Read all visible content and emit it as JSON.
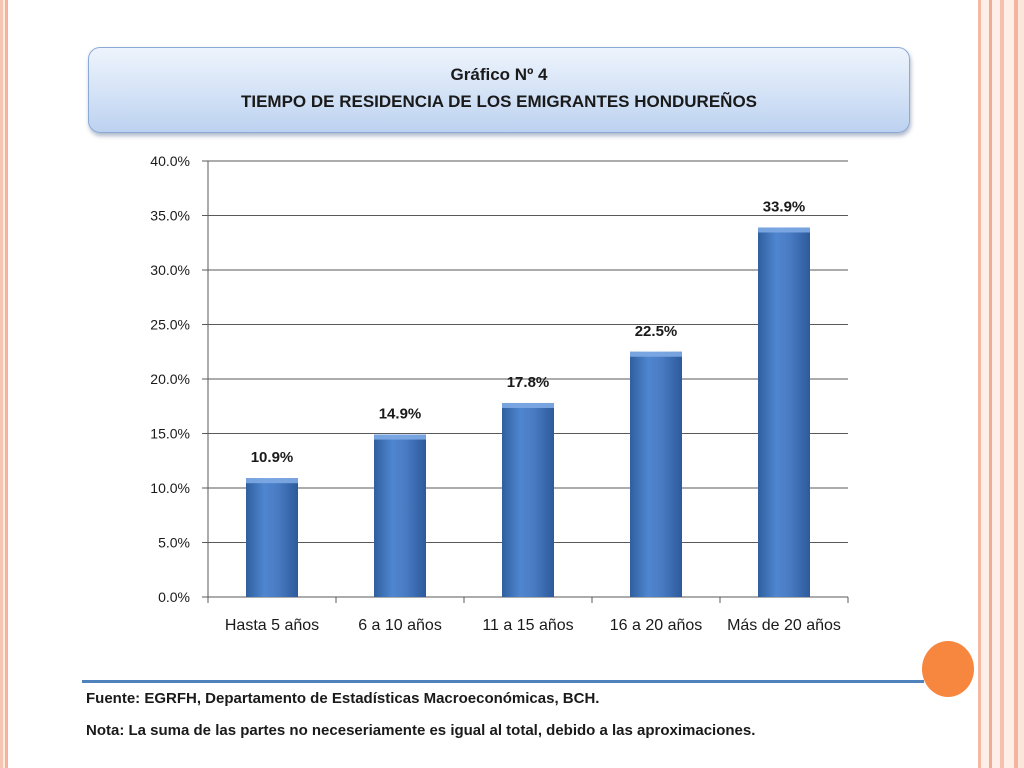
{
  "title": {
    "line1": "Gráfico Nº 4",
    "line2": "TIEMPO DE RESIDENCIA DE LOS EMIGRANTES HONDUREÑOS"
  },
  "footnotes": {
    "fuente": "Fuente: EGRFH, Departamento de Estadísticas Macroeconómicas, BCH.",
    "nota": "Nota: La suma de las partes no neceseriamente es igual al total, debido a las aproximaciones."
  },
  "colors": {
    "bar": "#4a7cc4",
    "bar_dark": "#2c5a9c",
    "grid": "#5a5a5a",
    "accent_orange": "#f7863f"
  },
  "chart_data": {
    "type": "bar",
    "categories": [
      "Hasta 5 años",
      "6 a 10 años",
      "11 a 15 años",
      "16 a 20 años",
      "Más de 20 años"
    ],
    "values": [
      10.9,
      14.9,
      17.8,
      22.5,
      33.9
    ],
    "data_labels": [
      "10.9%",
      "14.9%",
      "17.8%",
      "22.5%",
      "33.9%"
    ],
    "y_ticks": [
      "0.0%",
      "5.0%",
      "10.0%",
      "15.0%",
      "20.0%",
      "25.0%",
      "30.0%",
      "35.0%",
      "40.0%"
    ],
    "ylim": [
      0,
      40
    ],
    "grid": true,
    "legend": "none"
  }
}
